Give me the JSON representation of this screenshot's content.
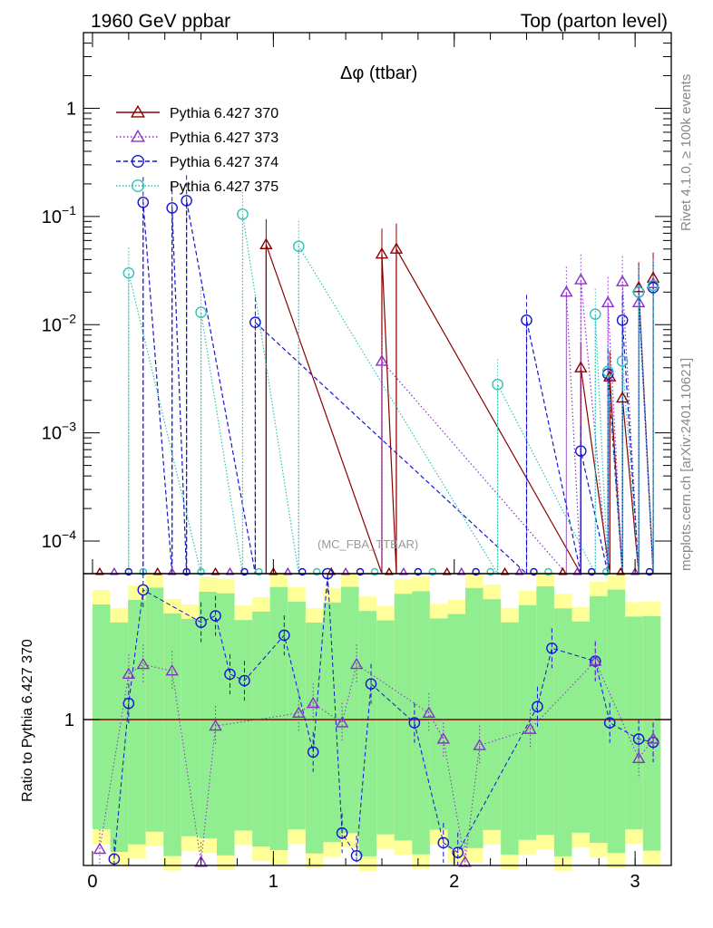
{
  "header": {
    "left": "1960 GeV ppbar",
    "right": "Top (parton level)"
  },
  "side_labels": {
    "rivet": "Rivet 4.1.0, ≥ 100k events",
    "mcplots": "mcplots.cern.ch [arXiv:2401.10621]"
  },
  "chart_data": {
    "type": "line",
    "title": "Δφ (ttbar)",
    "watermark": "(MC_FBA_TTBAR)",
    "xlim": [
      -0.05,
      3.2
    ],
    "top_panel": {
      "yscale": "log",
      "ylim": [
        5e-05,
        5
      ],
      "yticks": [
        {
          "v": 0.0001,
          "base": "10",
          "exp": "−4"
        },
        {
          "v": 0.001,
          "base": "10",
          "exp": "−3"
        },
        {
          "v": 0.01,
          "base": "10",
          "exp": "−2"
        },
        {
          "v": 0.1,
          "base": "10",
          "exp": "−1"
        },
        {
          "v": 1,
          "base": "1",
          "exp": ""
        }
      ]
    },
    "ratio_panel": {
      "ylabel": "Ratio to Pythia 6.427 370",
      "ylim": [
        0.55,
        1.45
      ],
      "yticks": [
        {
          "v": 1,
          "label": "1"
        }
      ]
    },
    "xticks": [
      {
        "v": 0,
        "label": "0"
      },
      {
        "v": 1,
        "label": "1"
      },
      {
        "v": 2,
        "label": "2"
      },
      {
        "v": 3,
        "label": "3"
      }
    ],
    "series": [
      {
        "name": "Pythia 6.427 370",
        "color": "#8b0000",
        "marker": "triangle",
        "dash": "solid",
        "x": [
          0.96,
          1.6,
          1.68,
          2.7,
          2.86,
          2.93,
          3.02,
          3.1
        ],
        "y": [
          0.055,
          0.045,
          0.05,
          0.004,
          0.0033,
          0.0021,
          0.022,
          0.027
        ]
      },
      {
        "name": "Pythia 6.427 373",
        "color": "#8b2fc9",
        "marker": "triangle",
        "dash": "1.5,2.5",
        "x": [
          1.6,
          2.62,
          2.7,
          2.85,
          2.93,
          3.02,
          3.1
        ],
        "y": [
          0.0046,
          0.02,
          0.026,
          0.016,
          0.025,
          0.016,
          0.024
        ]
      },
      {
        "name": "Pythia 6.427 374",
        "color": "#1515d6",
        "marker": "circle",
        "dash": "5,3",
        "x": [
          0.28,
          0.44,
          0.52,
          0.9,
          2.4,
          2.7,
          2.85,
          2.93,
          3.02,
          3.1
        ],
        "y": [
          0.135,
          0.12,
          0.14,
          0.0105,
          0.011,
          0.00068,
          0.0035,
          0.011,
          0.02,
          0.022
        ]
      },
      {
        "name": "Pythia 6.427 375",
        "color": "#2ec4b6",
        "marker": "circle",
        "dash": "1.5,2",
        "x": [
          0.2,
          0.6,
          0.83,
          1.14,
          2.24,
          2.78,
          2.85,
          2.93,
          3.02,
          3.1
        ],
        "y": [
          0.03,
          0.013,
          0.105,
          0.053,
          0.0028,
          0.0125,
          0.0037,
          0.0046,
          0.02,
          0.023
        ]
      }
    ],
    "ratio_points": [
      {
        "series": 2,
        "x": [
          0.12,
          0.2,
          0.28,
          0.6,
          0.68,
          0.76,
          0.84,
          1.06,
          1.22,
          1.3,
          1.38,
          1.46,
          1.54,
          1.78,
          1.94,
          2.02,
          2.46,
          2.54,
          2.78,
          2.86,
          3.02,
          3.1
        ],
        "y": [
          0.57,
          1.05,
          1.4,
          1.3,
          1.32,
          1.14,
          1.12,
          1.26,
          0.9,
          1.45,
          0.65,
          0.58,
          1.11,
          0.99,
          0.62,
          0.59,
          1.04,
          1.22,
          1.18,
          0.99,
          0.94,
          0.93
        ]
      },
      {
        "series": 1,
        "x": [
          0.04,
          0.2,
          0.28,
          0.44,
          0.6,
          0.68,
          1.14,
          1.22,
          1.38,
          1.46,
          1.86,
          1.94,
          2.06,
          2.14,
          2.42,
          2.78,
          3.02,
          3.1
        ],
        "y": [
          0.6,
          1.14,
          1.17,
          1.15,
          0.56,
          0.98,
          1.02,
          1.05,
          0.99,
          1.17,
          1.02,
          0.94,
          0.56,
          0.92,
          0.97,
          1.18,
          0.88,
          0.94
        ]
      }
    ]
  }
}
